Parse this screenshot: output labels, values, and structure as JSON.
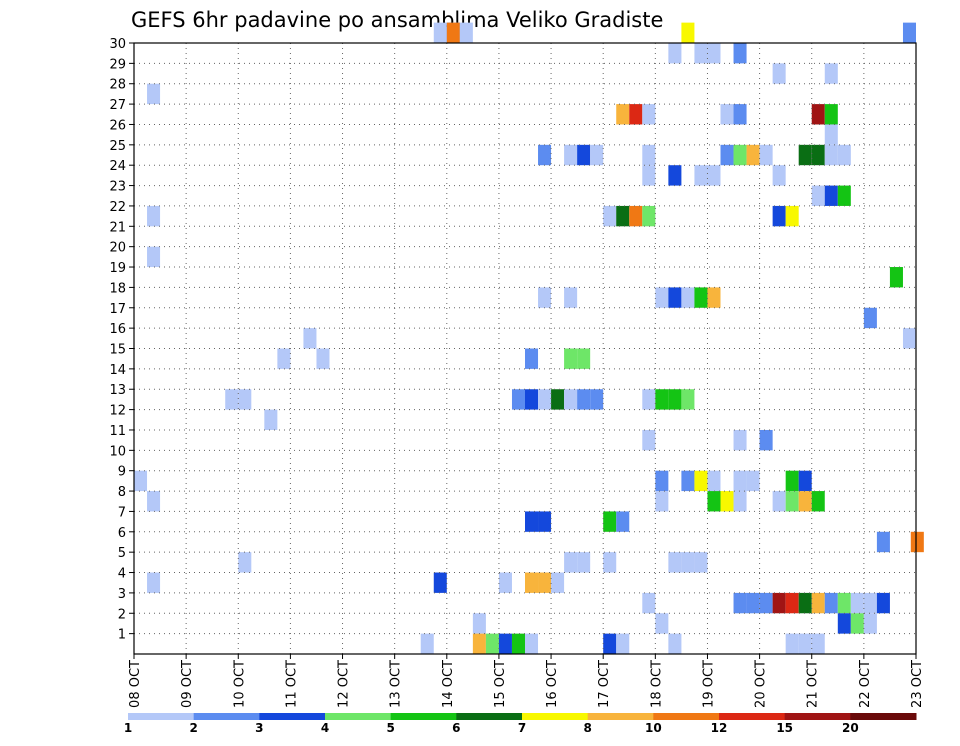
{
  "chart_data": {
    "type": "heatmap",
    "title": "GEFS 6hr padavine po ansamblima Veliko Gradiste",
    "xlabel": "",
    "ylabel": "",
    "x_ticks": [
      "08 OCT",
      "09 OCT",
      "10 OCT",
      "11 OCT",
      "12 OCT",
      "13 OCT",
      "14 OCT",
      "15 OCT",
      "16 OCT",
      "17 OCT",
      "18 OCT",
      "19 OCT",
      "20 OCT",
      "21 OCT",
      "22 OCT",
      "23 OCT"
    ],
    "x_range_days": [
      0,
      15
    ],
    "y_ticks": [
      1,
      2,
      3,
      4,
      5,
      6,
      7,
      8,
      9,
      10,
      11,
      12,
      13,
      14,
      15,
      16,
      17,
      18,
      19,
      20,
      21,
      22,
      23,
      24,
      25,
      26,
      27,
      28,
      29,
      30
    ],
    "y_range": [
      0,
      30
    ],
    "grid": "dotted",
    "colorbar": {
      "labels": [
        "1",
        "2",
        "3",
        "4",
        "5",
        "6",
        "7",
        "8",
        "10",
        "12",
        "15",
        "20"
      ],
      "colors": [
        "#b4c8f8",
        "#5c8cf0",
        "#1448dc",
        "#6ee668",
        "#14c414",
        "#0a6e14",
        "#f8f800",
        "#f8b43c",
        "#f07814",
        "#dc2814",
        "#a01414",
        "#6a0a0a"
      ]
    },
    "cells": [
      {
        "member": 30,
        "t": 5.75,
        "c": 1
      },
      {
        "member": 30,
        "t": 6.0,
        "c": 2
      },
      {
        "member": 30,
        "t": 6.0,
        "c": 10
      },
      {
        "member": 30,
        "t": 6.25,
        "c": 1
      },
      {
        "member": 30,
        "t": 10.5,
        "c": 7
      },
      {
        "member": 30,
        "t": 14.75,
        "c": 2
      },
      {
        "member": 29,
        "t": 10.25,
        "c": 1
      },
      {
        "member": 29,
        "t": 10.75,
        "c": 1
      },
      {
        "member": 29,
        "t": 11.0,
        "c": 1
      },
      {
        "member": 29,
        "t": 11.5,
        "c": 2
      },
      {
        "member": 28,
        "t": 12.25,
        "c": 1
      },
      {
        "member": 28,
        "t": 13.25,
        "c": 1
      },
      {
        "member": 27,
        "t": 0.25,
        "c": 1
      },
      {
        "member": 26,
        "t": 9.25,
        "c": 8
      },
      {
        "member": 26,
        "t": 9.5,
        "c": 12
      },
      {
        "member": 26,
        "t": 9.75,
        "c": 1
      },
      {
        "member": 26,
        "t": 11.25,
        "c": 1
      },
      {
        "member": 26,
        "t": 11.5,
        "c": 2
      },
      {
        "member": 26,
        "t": 13.0,
        "c": 15
      },
      {
        "member": 26,
        "t": 13.25,
        "c": 5
      },
      {
        "member": 25,
        "t": 13.25,
        "c": 1
      },
      {
        "member": 24,
        "t": 7.75,
        "c": 2
      },
      {
        "member": 24,
        "t": 8.25,
        "c": 1
      },
      {
        "member": 24,
        "t": 8.5,
        "c": 3
      },
      {
        "member": 24,
        "t": 8.75,
        "c": 1
      },
      {
        "member": 24,
        "t": 9.75,
        "c": 1
      },
      {
        "member": 24,
        "t": 11.25,
        "c": 2
      },
      {
        "member": 24,
        "t": 11.5,
        "c": 4
      },
      {
        "member": 24,
        "t": 11.75,
        "c": 8
      },
      {
        "member": 24,
        "t": 12.0,
        "c": 1
      },
      {
        "member": 24,
        "t": 12.75,
        "c": 6
      },
      {
        "member": 24,
        "t": 13.0,
        "c": 6
      },
      {
        "member": 24,
        "t": 13.25,
        "c": 1
      },
      {
        "member": 24,
        "t": 13.5,
        "c": 1
      },
      {
        "member": 23,
        "t": 9.75,
        "c": 1
      },
      {
        "member": 23,
        "t": 10.25,
        "c": 3
      },
      {
        "member": 23,
        "t": 10.75,
        "c": 1
      },
      {
        "member": 23,
        "t": 11.0,
        "c": 1
      },
      {
        "member": 23,
        "t": 12.25,
        "c": 1
      },
      {
        "member": 22,
        "t": 13.0,
        "c": 1
      },
      {
        "member": 22,
        "t": 13.25,
        "c": 3
      },
      {
        "member": 22,
        "t": 13.5,
        "c": 5
      },
      {
        "member": 21,
        "t": 0.25,
        "c": 1
      },
      {
        "member": 21,
        "t": 9.0,
        "c": 1
      },
      {
        "member": 21,
        "t": 9.25,
        "c": 6
      },
      {
        "member": 21,
        "t": 9.5,
        "c": 10
      },
      {
        "member": 21,
        "t": 9.75,
        "c": 4
      },
      {
        "member": 21,
        "t": 12.25,
        "c": 3
      },
      {
        "member": 21,
        "t": 12.5,
        "c": 7
      },
      {
        "member": 19,
        "t": 0.25,
        "c": 1
      },
      {
        "member": 18,
        "t": 14.5,
        "c": 5
      },
      {
        "member": 17,
        "t": 7.75,
        "c": 1
      },
      {
        "member": 17,
        "t": 8.25,
        "c": 1
      },
      {
        "member": 17,
        "t": 10.0,
        "c": 1
      },
      {
        "member": 17,
        "t": 10.25,
        "c": 3
      },
      {
        "member": 17,
        "t": 10.5,
        "c": 1
      },
      {
        "member": 17,
        "t": 10.75,
        "c": 5
      },
      {
        "member": 17,
        "t": 11.0,
        "c": 8
      },
      {
        "member": 16,
        "t": 14.0,
        "c": 2
      },
      {
        "member": 15,
        "t": 3.25,
        "c": 1
      },
      {
        "member": 15,
        "t": 14.75,
        "c": 1
      },
      {
        "member": 14,
        "t": 2.75,
        "c": 1
      },
      {
        "member": 14,
        "t": 3.5,
        "c": 1
      },
      {
        "member": 14,
        "t": 7.5,
        "c": 2
      },
      {
        "member": 14,
        "t": 8.25,
        "c": 4
      },
      {
        "member": 14,
        "t": 8.5,
        "c": 4
      },
      {
        "member": 12,
        "t": 1.75,
        "c": 1
      },
      {
        "member": 12,
        "t": 2.0,
        "c": 1
      },
      {
        "member": 12,
        "t": 7.25,
        "c": 2
      },
      {
        "member": 12,
        "t": 7.5,
        "c": 3
      },
      {
        "member": 12,
        "t": 7.75,
        "c": 1
      },
      {
        "member": 12,
        "t": 8.0,
        "c": 6
      },
      {
        "member": 12,
        "t": 8.25,
        "c": 1
      },
      {
        "member": 12,
        "t": 8.5,
        "c": 2
      },
      {
        "member": 12,
        "t": 8.75,
        "c": 2
      },
      {
        "member": 12,
        "t": 9.75,
        "c": 1
      },
      {
        "member": 12,
        "t": 10.0,
        "c": 5
      },
      {
        "member": 12,
        "t": 10.25,
        "c": 5
      },
      {
        "member": 12,
        "t": 10.5,
        "c": 4
      },
      {
        "member": 11,
        "t": 2.5,
        "c": 1
      },
      {
        "member": 10,
        "t": 9.75,
        "c": 1
      },
      {
        "member": 10,
        "t": 11.5,
        "c": 1
      },
      {
        "member": 10,
        "t": 12.0,
        "c": 2
      },
      {
        "member": 8,
        "t": 0.0,
        "c": 1
      },
      {
        "member": 8,
        "t": 10.0,
        "c": 2
      },
      {
        "member": 8,
        "t": 10.5,
        "c": 2
      },
      {
        "member": 8,
        "t": 10.75,
        "c": 7
      },
      {
        "member": 8,
        "t": 11.0,
        "c": 1
      },
      {
        "member": 8,
        "t": 11.5,
        "c": 1
      },
      {
        "member": 8,
        "t": 11.75,
        "c": 1
      },
      {
        "member": 8,
        "t": 12.5,
        "c": 5
      },
      {
        "member": 8,
        "t": 12.75,
        "c": 3
      },
      {
        "member": 7,
        "t": 0.25,
        "c": 1
      },
      {
        "member": 7,
        "t": 10.0,
        "c": 1
      },
      {
        "member": 7,
        "t": 11.0,
        "c": 5
      },
      {
        "member": 7,
        "t": 11.25,
        "c": 7
      },
      {
        "member": 7,
        "t": 11.5,
        "c": 1
      },
      {
        "member": 7,
        "t": 12.25,
        "c": 1
      },
      {
        "member": 7,
        "t": 12.5,
        "c": 4
      },
      {
        "member": 7,
        "t": 12.75,
        "c": 8
      },
      {
        "member": 7,
        "t": 13.0,
        "c": 5
      },
      {
        "member": 6,
        "t": 7.5,
        "c": 3
      },
      {
        "member": 6,
        "t": 7.75,
        "c": 3
      },
      {
        "member": 6,
        "t": 9.0,
        "c": 5
      },
      {
        "member": 6,
        "t": 9.25,
        "c": 2
      },
      {
        "member": 5,
        "t": 14.25,
        "c": 2
      },
      {
        "member": 5,
        "t": 14.9,
        "c": 10
      },
      {
        "member": 4,
        "t": 2.0,
        "c": 1
      },
      {
        "member": 4,
        "t": 8.25,
        "c": 1
      },
      {
        "member": 4,
        "t": 8.5,
        "c": 1
      },
      {
        "member": 4,
        "t": 9.0,
        "c": 1
      },
      {
        "member": 4,
        "t": 10.25,
        "c": 1
      },
      {
        "member": 4,
        "t": 10.5,
        "c": 1
      },
      {
        "member": 4,
        "t": 10.75,
        "c": 1
      },
      {
        "member": 3,
        "t": 0.25,
        "c": 1
      },
      {
        "member": 3,
        "t": 5.75,
        "c": 3
      },
      {
        "member": 3,
        "t": 7.0,
        "c": 1
      },
      {
        "member": 3,
        "t": 7.5,
        "c": 8
      },
      {
        "member": 3,
        "t": 7.75,
        "c": 8
      },
      {
        "member": 3,
        "t": 8.0,
        "c": 1
      },
      {
        "member": 2,
        "t": 9.75,
        "c": 1
      },
      {
        "member": 2,
        "t": 11.5,
        "c": 2
      },
      {
        "member": 2,
        "t": 11.75,
        "c": 2
      },
      {
        "member": 2,
        "t": 12.0,
        "c": 2
      },
      {
        "member": 2,
        "t": 12.25,
        "c": 15
      },
      {
        "member": 2,
        "t": 12.5,
        "c": 12
      },
      {
        "member": 2,
        "t": 12.75,
        "c": 6
      },
      {
        "member": 2,
        "t": 13.0,
        "c": 8
      },
      {
        "member": 2,
        "t": 13.25,
        "c": 2
      },
      {
        "member": 2,
        "t": 13.5,
        "c": 4
      },
      {
        "member": 2,
        "t": 13.75,
        "c": 1
      },
      {
        "member": 2,
        "t": 14.0,
        "c": 1
      },
      {
        "member": 2,
        "t": 14.25,
        "c": 3
      },
      {
        "member": 1,
        "t": 6.5,
        "c": 1
      },
      {
        "member": 1,
        "t": 10.0,
        "c": 1
      },
      {
        "member": 1,
        "t": 13.5,
        "c": 3
      },
      {
        "member": 1,
        "t": 13.75,
        "c": 4
      },
      {
        "member": 1,
        "t": 14.0,
        "c": 1
      },
      {
        "member": 0,
        "t": 5.5,
        "c": 1
      },
      {
        "member": 0,
        "t": 6.5,
        "c": 8
      },
      {
        "member": 0,
        "t": 6.75,
        "c": 4
      },
      {
        "member": 0,
        "t": 7.0,
        "c": 3
      },
      {
        "member": 0,
        "t": 7.25,
        "c": 5
      },
      {
        "member": 0,
        "t": 7.5,
        "c": 1
      },
      {
        "member": 0,
        "t": 9.0,
        "c": 3
      },
      {
        "member": 0,
        "t": 9.25,
        "c": 1
      },
      {
        "member": 0,
        "t": 10.25,
        "c": 1
      },
      {
        "member": 0,
        "t": 12.5,
        "c": 1
      },
      {
        "member": 0,
        "t": 12.75,
        "c": 1
      },
      {
        "member": 0,
        "t": 13.0,
        "c": 1
      }
    ]
  }
}
